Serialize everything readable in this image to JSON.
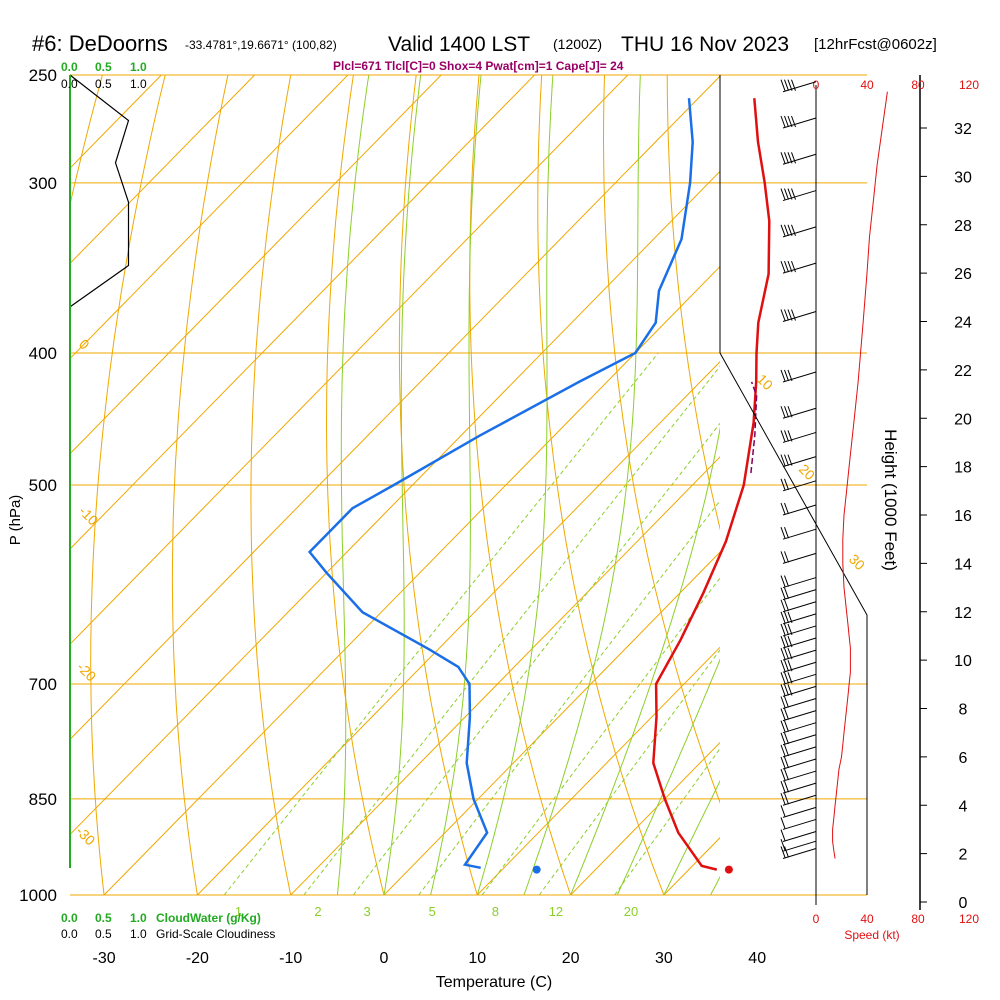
{
  "header": {
    "station": "#6: DeDoorns",
    "coords": "-33.4781°,19.6671° (100,82)",
    "valid": "Valid 1400 LST",
    "utc": "(1200Z)",
    "date": "THU 16 Nov 2023",
    "fcst": "[12hrFcst@0602z]",
    "indices": "Plcl=671 Tlcl[C]=0 Shox=4 Pwat[cm]=1 Cape[J]= 24"
  },
  "colors": {
    "isobar": "#f0a800",
    "isotherm": "#f0a800",
    "dry_adiabat": "#f0a800",
    "moist_adiabat": "#8ccf2a",
    "mixing_ratio": "#8ccf2a",
    "temperature": "#e01010",
    "dewpoint": "#1a6fe8",
    "parcel": "#800060",
    "cloud_scale": "#22aa22",
    "wind_axis": "#e01010",
    "indices": "#990066"
  },
  "labels": {
    "ylabel": "P (hPa)",
    "xlabel": "Temperature (C)",
    "height_label": "Height (1000 Feet)",
    "speed_label": "Speed (kt)",
    "cloudwater_label": "CloudWater (g/Kg)",
    "cloudiness_label": "Grid-Scale Cloudiness"
  },
  "cloud_scale": {
    "green_ticks": [
      "0.0",
      "0.5",
      "1.0"
    ],
    "black_ticks": [
      "0.0",
      "0.5",
      "1.0"
    ]
  },
  "chart_data": {
    "type": "line",
    "pressure_axis": {
      "ticks": [
        250,
        300,
        400,
        500,
        700,
        850,
        1000
      ],
      "range": [
        1000,
        250
      ],
      "scale": "log"
    },
    "temperature_axis": {
      "ticks": [
        -30,
        -20,
        -10,
        0,
        10,
        20,
        30,
        40
      ],
      "range": [
        -34,
        45
      ]
    },
    "height_axis": {
      "ticks": [
        0,
        2,
        4,
        6,
        8,
        10,
        12,
        14,
        16,
        18,
        20,
        22,
        24,
        26,
        28,
        30,
        32
      ],
      "range": [
        0,
        33
      ]
    },
    "speed_axis": {
      "ticks": [
        0,
        40,
        80,
        120
      ]
    },
    "isotherm_labels": [
      "-30",
      "-20",
      "-10",
      "0",
      "10",
      "20",
      "30"
    ],
    "mixing_ratio_labels": [
      "1",
      "2",
      "3",
      "5",
      "8",
      "12",
      "20"
    ],
    "series": [
      {
        "pressure": [
          958,
          952,
          900,
          850,
          800,
          740,
          700,
          650,
          600,
          550,
          500,
          450,
          420,
          400,
          380,
          350,
          320,
          300,
          280,
          260
        ],
        "values": [
          33,
          31,
          25,
          20,
          15,
          10.5,
          7,
          5,
          2.5,
          -0.5,
          -4.5,
          -10,
          -14,
          -17,
          -20,
          -24,
          -29.5,
          -34,
          -39,
          -44
        ]
      },
      {
        "pressure": [
          955,
          950,
          900,
          850,
          800,
          740,
          700,
          680,
          660,
          620,
          580,
          560,
          540,
          520,
          500,
          460,
          420,
          400,
          380,
          360,
          330,
          300,
          280,
          260
        ],
        "values": [
          7.5,
          5.5,
          4.5,
          -0.5,
          -5,
          -9.5,
          -13,
          -16,
          -21,
          -32,
          -40,
          -44,
          -44,
          -44,
          -42,
          -38,
          -33,
          -30,
          -31,
          -34,
          -37,
          -42,
          -46,
          -51
        ]
      },
      {
        "pressure": [
          490,
          460,
          430,
          420
        ],
        "values": [
          -5,
          -8.5,
          -12.5,
          -14.5
        ]
      }
    ],
    "surface": {
      "temperature": 34.3,
      "dewpoint": 13.7,
      "pressure": 958
    },
    "wind": {
      "heights_kft": [
        1.8,
        2.1,
        2.5,
        3.0,
        3.5,
        4.0,
        4.5,
        5.0,
        5.5,
        6.0,
        6.5,
        7.0,
        7.5,
        8.0,
        8.5,
        9.0,
        9.5,
        10.0,
        10.5,
        11.0,
        11.5,
        12.0,
        12.5,
        13.0,
        14.0,
        15.0,
        16.0,
        17.0,
        18.0,
        19.0,
        20.0,
        21.5,
        24.0,
        26.0,
        27.5,
        29.0,
        30.5,
        32.0,
        33.5
      ],
      "speed_kt": [
        15,
        14,
        13,
        13,
        14,
        15,
        16,
        17,
        18,
        20,
        21,
        22,
        23,
        24,
        25,
        26,
        27,
        27,
        27,
        26,
        25,
        24,
        23,
        22,
        21,
        21,
        22,
        24,
        26,
        28,
        30,
        33,
        37,
        40,
        42,
        45,
        48,
        52,
        56
      ]
    },
    "cloud_water_profile": {
      "pressure": [
        250,
        270,
        290,
        310,
        330,
        345,
        370
      ],
      "values": [
        0,
        0.45,
        0.35,
        0.45,
        0.45,
        0.45,
        0
      ]
    }
  }
}
